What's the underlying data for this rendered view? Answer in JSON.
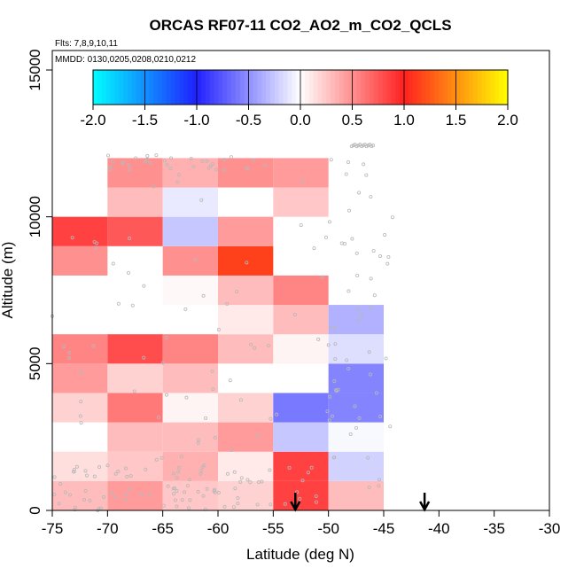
{
  "chart_data": {
    "type": "heatmap",
    "title": "ORCAS RF07-11 CO2_AO2_m_CO2_QCLS",
    "flights_note": "Flts: 7,8,9,10,11",
    "dates_note": "MMDD: 0130,0205,0208,0210,0212",
    "xlabel": "Latitude (deg N)",
    "ylabel": "Altitude (m)",
    "xlim": [
      -75,
      -30
    ],
    "ylim": [
      0,
      16000
    ],
    "xticks": [
      -75,
      -70,
      -65,
      -60,
      -55,
      -50,
      -45,
      -40,
      -35,
      -30
    ],
    "xtick_labels": [
      "-75",
      "-70",
      "-65",
      "-60",
      "-55",
      "-50",
      "-45",
      "-40",
      "-35",
      "-30"
    ],
    "yticks": [
      0,
      5000,
      10000,
      15000
    ],
    "ytick_labels": [
      "0",
      "5000",
      "10000",
      "15000"
    ],
    "colorbar": {
      "range": [
        -2.0,
        2.0
      ],
      "ticks": [
        -2.0,
        -1.5,
        -1.0,
        -0.5,
        0.0,
        0.5,
        1.0,
        1.5,
        2.0
      ],
      "tick_labels": [
        "-2.0",
        "-1.5",
        "-1.0",
        "-0.5",
        "0.0",
        "0.5",
        "1.0",
        "1.5",
        "2.0"
      ],
      "stops": [
        {
          "v": -2.0,
          "color": "#00ffff"
        },
        {
          "v": -1.0,
          "color": "#2020ff"
        },
        {
          "v": 0.0,
          "color": "#ffffff"
        },
        {
          "v": 1.0,
          "color": "#ff2020"
        },
        {
          "v": 2.0,
          "color": "#ffff00"
        }
      ]
    },
    "lat_bin_width": 5,
    "alt_bin_height": 1000,
    "cells": [
      {
        "lat": -75,
        "alt": 0,
        "v": 0.3
      },
      {
        "lat": -70,
        "alt": 0,
        "v": 0.45
      },
      {
        "lat": -65,
        "alt": 0,
        "v": 0.25
      },
      {
        "lat": -60,
        "alt": 0,
        "v": 0.2
      },
      {
        "lat": -55,
        "alt": 0,
        "v": 0.85
      },
      {
        "lat": -50,
        "alt": 0,
        "v": 0.3
      },
      {
        "lat": -75,
        "alt": 1000,
        "v": 0.15
      },
      {
        "lat": -70,
        "alt": 1000,
        "v": 0.25
      },
      {
        "lat": -65,
        "alt": 1000,
        "v": 0.35
      },
      {
        "lat": -60,
        "alt": 1000,
        "v": 0.1
      },
      {
        "lat": -55,
        "alt": 1000,
        "v": 0.85
      },
      {
        "lat": -50,
        "alt": 1000,
        "v": -0.2
      },
      {
        "lat": -70,
        "alt": 2000,
        "v": 0.3
      },
      {
        "lat": -65,
        "alt": 2000,
        "v": 0.3
      },
      {
        "lat": -60,
        "alt": 2000,
        "v": 0.45
      },
      {
        "lat": -55,
        "alt": 2000,
        "v": -0.25
      },
      {
        "lat": -50,
        "alt": 2000,
        "v": -0.03
      },
      {
        "lat": -75,
        "alt": 3000,
        "v": 0.2
      },
      {
        "lat": -70,
        "alt": 3000,
        "v": 0.6
      },
      {
        "lat": -65,
        "alt": 3000,
        "v": 0.05
      },
      {
        "lat": -60,
        "alt": 3000,
        "v": 0.2
      },
      {
        "lat": -55,
        "alt": 3000,
        "v": -0.6
      },
      {
        "lat": -50,
        "alt": 3000,
        "v": -0.55
      },
      {
        "lat": -75,
        "alt": 4000,
        "v": 0.45
      },
      {
        "lat": -70,
        "alt": 4000,
        "v": 0.2
      },
      {
        "lat": -65,
        "alt": 4000,
        "v": 0.3
      },
      {
        "lat": -50,
        "alt": 4000,
        "v": -0.55
      },
      {
        "lat": -75,
        "alt": 5000,
        "v": 0.55
      },
      {
        "lat": -70,
        "alt": 5000,
        "v": 0.8
      },
      {
        "lat": -65,
        "alt": 5000,
        "v": 0.55
      },
      {
        "lat": -60,
        "alt": 5000,
        "v": 0.3
      },
      {
        "lat": -55,
        "alt": 5000,
        "v": 0.05
      },
      {
        "lat": -50,
        "alt": 5000,
        "v": -0.15
      },
      {
        "lat": -60,
        "alt": 6000,
        "v": 0.1
      },
      {
        "lat": -55,
        "alt": 6000,
        "v": 0.3
      },
      {
        "lat": -50,
        "alt": 6000,
        "v": -0.35
      },
      {
        "lat": -65,
        "alt": 7000,
        "v": 0.03
      },
      {
        "lat": -60,
        "alt": 7000,
        "v": 0.3
      },
      {
        "lat": -55,
        "alt": 7000,
        "v": 0.55
      },
      {
        "lat": -75,
        "alt": 8000,
        "v": 0.5
      },
      {
        "lat": -65,
        "alt": 8000,
        "v": 0.5
      },
      {
        "lat": -60,
        "alt": 8000,
        "v": 1.15
      },
      {
        "lat": -75,
        "alt": 9000,
        "v": 0.85
      },
      {
        "lat": -70,
        "alt": 9000,
        "v": 0.75
      },
      {
        "lat": -65,
        "alt": 9000,
        "v": -0.25
      },
      {
        "lat": -60,
        "alt": 9000,
        "v": 0.45
      },
      {
        "lat": -70,
        "alt": 10000,
        "v": 0.3
      },
      {
        "lat": -65,
        "alt": 10000,
        "v": -0.1
      },
      {
        "lat": -55,
        "alt": 10000,
        "v": 0.25
      },
      {
        "lat": -70,
        "alt": 11000,
        "v": 0.5
      },
      {
        "lat": -65,
        "alt": 11000,
        "v": 0.35
      },
      {
        "lat": -60,
        "alt": 11000,
        "v": 0.5
      },
      {
        "lat": -55,
        "alt": 11000,
        "v": 0.45
      }
    ],
    "markers": [
      {
        "lat": -53,
        "label": "arrow"
      },
      {
        "lat": -41.3,
        "label": "arrow"
      }
    ],
    "sample_points_visible": true
  }
}
